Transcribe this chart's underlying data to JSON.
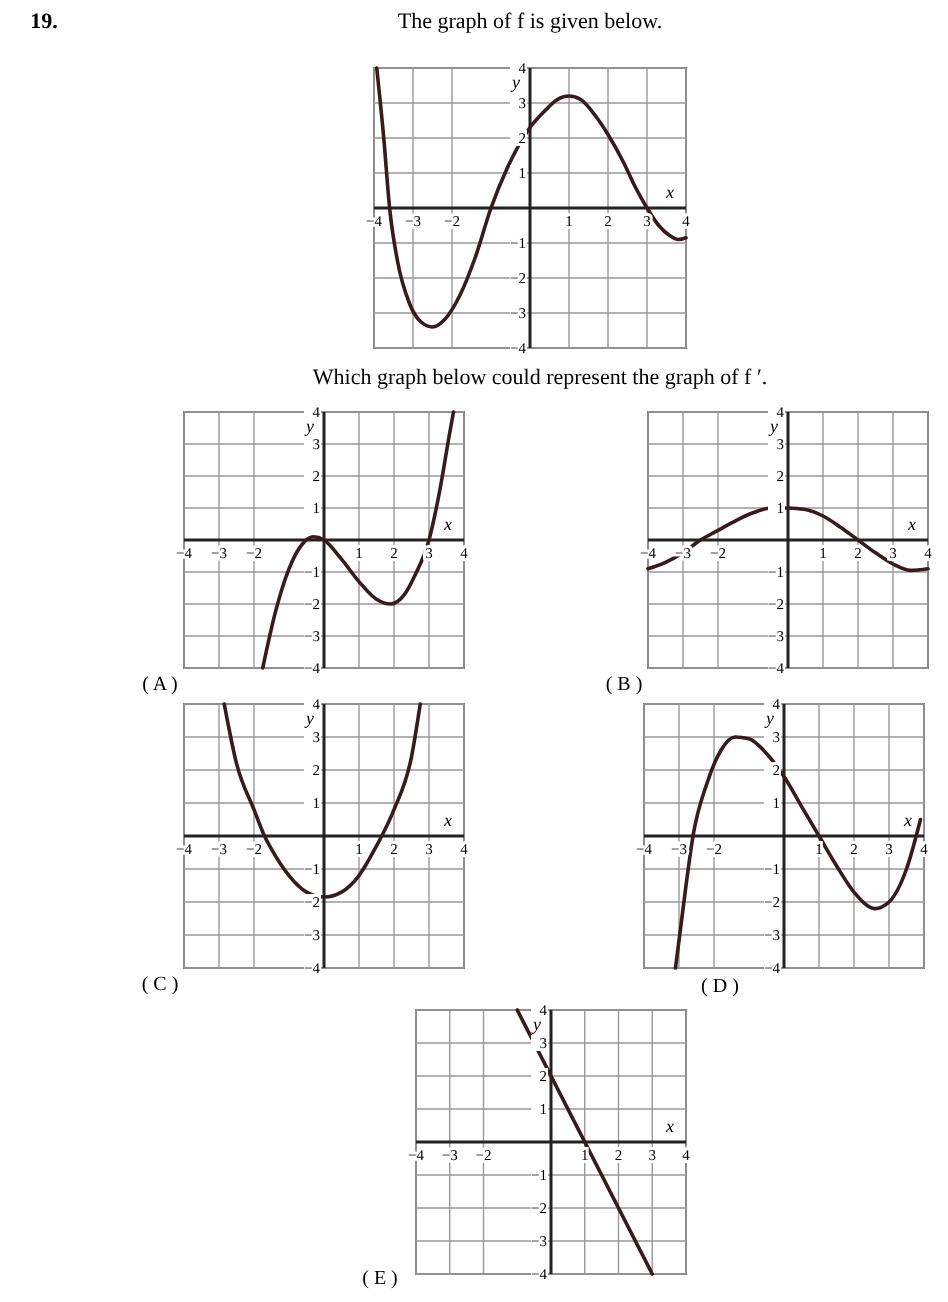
{
  "chart_data": [
    {
      "type": "line",
      "title": "The graph of f is given below.",
      "annotations": [
        "19.",
        "Which graph below could represent the graph of f ′."
      ],
      "xlabel": "x",
      "ylabel": "y",
      "xlim": [
        -4,
        4
      ],
      "ylim": [
        -4,
        4
      ],
      "xticks": [
        -4,
        -3,
        -2,
        1,
        2,
        3,
        4
      ],
      "yticks": [
        -4,
        -3,
        -2,
        -1,
        1,
        2,
        3,
        4
      ],
      "grid": true,
      "series": [
        {
          "color": "#3a1a1a",
          "x": [
            -3.93,
            -3.75,
            -3.6,
            -3.4,
            -3.1,
            -2.8,
            -2.5,
            -2.2,
            -1.8,
            -1.4,
            -1,
            -0.6,
            0,
            0.4,
            0.7,
            1,
            1.3,
            1.7,
            2,
            2.4,
            2.7,
            3,
            3.3,
            3.6,
            3.8,
            4
          ],
          "values": [
            4,
            2,
            0,
            -1.5,
            -2.7,
            -3.25,
            -3.4,
            -3.2,
            -2.5,
            -1.4,
            0,
            1.1,
            2.3,
            2.8,
            3.1,
            3.2,
            3.1,
            2.6,
            2.1,
            1.3,
            0.6,
            0,
            -0.5,
            -0.8,
            -0.9,
            -0.85
          ]
        }
      ]
    },
    {
      "type": "line",
      "title": "( A )",
      "xlabel": "x",
      "ylabel": "y",
      "xlim": [
        -4,
        4
      ],
      "ylim": [
        -4,
        4
      ],
      "xticks": [
        -4,
        -3,
        -2,
        1,
        2,
        3,
        4
      ],
      "yticks": [
        -4,
        -3,
        -2,
        -1,
        1,
        2,
        3,
        4
      ],
      "grid": true,
      "series": [
        {
          "color": "#3a1a1a",
          "x": [
            -1.75,
            -1.4,
            -1,
            -0.6,
            -0.3,
            0,
            0.5,
            1,
            1.5,
            1.9,
            2.3,
            2.6,
            3,
            3.3,
            3.6,
            3.7
          ],
          "values": [
            -4,
            -2.3,
            -0.9,
            -0.1,
            0.1,
            0,
            -0.6,
            -1.3,
            -1.85,
            -2,
            -1.7,
            -1.1,
            0,
            1.5,
            3.4,
            4
          ]
        }
      ]
    },
    {
      "type": "line",
      "title": "( B )",
      "xlabel": "x",
      "ylabel": "y",
      "xlim": [
        -4,
        4
      ],
      "ylim": [
        -4,
        4
      ],
      "xticks": [
        -4,
        -3,
        -2,
        1,
        2,
        3,
        4
      ],
      "yticks": [
        -4,
        -3,
        -2,
        -1,
        1,
        2,
        3,
        4
      ],
      "grid": true,
      "series": [
        {
          "color": "#3a1a1a",
          "x": [
            -4,
            -3.5,
            -3,
            -2.5,
            -2,
            -1.5,
            -1,
            -0.5,
            0,
            0.5,
            1,
            1.5,
            2,
            2.5,
            3,
            3.5,
            4
          ],
          "values": [
            -0.9,
            -0.7,
            -0.4,
            0,
            0.3,
            0.6,
            0.85,
            1,
            1,
            0.95,
            0.75,
            0.4,
            0,
            -0.4,
            -0.75,
            -0.95,
            -0.9
          ]
        }
      ]
    },
    {
      "type": "line",
      "title": "( C )",
      "xlabel": "x",
      "ylabel": "y",
      "xlim": [
        -4,
        4
      ],
      "ylim": [
        -4,
        4
      ],
      "xticks": [
        -4,
        -3,
        -2,
        1,
        2,
        3,
        4
      ],
      "yticks": [
        -4,
        -3,
        -2,
        -1,
        1,
        2,
        3,
        4
      ],
      "grid": true,
      "series": [
        {
          "color": "#3a1a1a",
          "x": [
            -2.85,
            -2.5,
            -2,
            -1.7,
            -1.5,
            -1,
            -0.5,
            0,
            0.5,
            1,
            1.5,
            1.65,
            2,
            2.5,
            2.75
          ],
          "values": [
            4,
            2.2,
            0.8,
            0,
            -0.4,
            -1.2,
            -1.7,
            -1.85,
            -1.7,
            -1.2,
            -0.3,
            0,
            0.8,
            2.4,
            4
          ]
        }
      ]
    },
    {
      "type": "line",
      "title": "( D )",
      "xlabel": "x",
      "ylabel": "y",
      "xlim": [
        -4,
        4
      ],
      "ylim": [
        -4,
        4
      ],
      "xticks": [
        -4,
        -3,
        -2,
        1,
        2,
        3,
        4
      ],
      "yticks": [
        -4,
        -3,
        -2,
        -1,
        1,
        2,
        3,
        4
      ],
      "grid": true,
      "series": [
        {
          "color": "#3a1a1a",
          "x": [
            -3.1,
            -2.8,
            -2.6,
            -2.2,
            -1.8,
            -1.4,
            -1,
            -0.5,
            0,
            0.5,
            1,
            1.5,
            2,
            2.6,
            3,
            3.5,
            3.9
          ],
          "values": [
            -4,
            -1.5,
            0,
            1.6,
            2.6,
            3,
            2.95,
            2.5,
            1.8,
            0.9,
            0,
            -0.9,
            -1.7,
            -2.2,
            -2,
            -1,
            0.5
          ]
        }
      ]
    },
    {
      "type": "line",
      "title": "( E )",
      "xlabel": "x",
      "ylabel": "y",
      "xlim": [
        -4,
        4
      ],
      "ylim": [
        -4,
        4
      ],
      "xticks": [
        -4,
        -3,
        -2,
        1,
        2,
        3,
        4
      ],
      "yticks": [
        -4,
        -3,
        -2,
        -1,
        1,
        2,
        3,
        4
      ],
      "grid": true,
      "series": [
        {
          "color": "#3a1a1a",
          "x": [
            -1,
            3
          ],
          "values": [
            4,
            -4
          ]
        }
      ]
    }
  ]
}
